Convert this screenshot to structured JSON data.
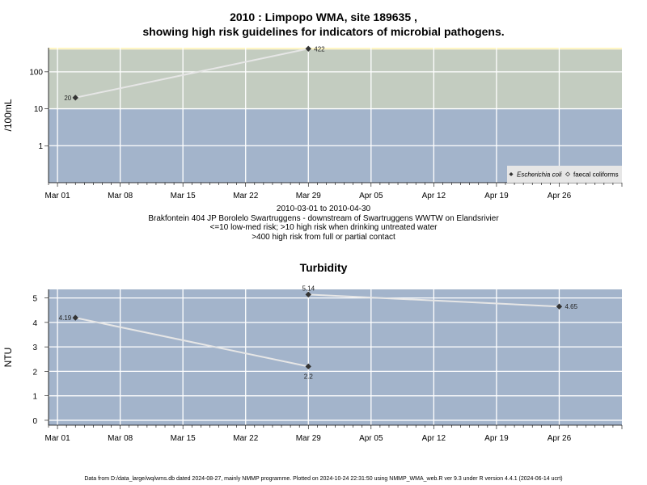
{
  "chart1": {
    "title_line1": "2010 : Limpopo WMA, site 189635 ,",
    "title_line2": "showing high risk guidelines for indicators of microbial pathogens.",
    "ylabel": "/100mL",
    "x_ticks": [
      "Mar 01",
      "Mar 08",
      "Mar 15",
      "Mar 22",
      "Mar 29",
      "Apr 05",
      "Apr 12",
      "Apr 19",
      "Apr 26"
    ],
    "y_ticks": [
      "1",
      "10",
      "100"
    ],
    "caption": [
      "2010-03-01 to 2010-04-30",
      "Brakfontein 404 JP Borolelo Swartruggens - downstream of Swartruggens WWTW on Elandsrivier",
      "<=10 low-med risk; >10 high risk when drinking untreated water",
      ">400 high risk from full or partial contact"
    ],
    "legend": [
      "Escherichia coli",
      "faecal coliforms"
    ],
    "colors": {
      "low_band": "#a3b4cb",
      "mid_band": "#c3ccc0",
      "high_band": "#fff6c4",
      "line": "#e6e6e6",
      "grid": "#ffffff"
    }
  },
  "chart2": {
    "title": "Turbidity",
    "ylabel": "NTU",
    "x_ticks": [
      "Mar 01",
      "Mar 08",
      "Mar 15",
      "Mar 22",
      "Mar 29",
      "Apr 05",
      "Apr 12",
      "Apr 19",
      "Apr 26"
    ],
    "y_ticks": [
      "0",
      "1",
      "2",
      "3",
      "4",
      "5"
    ],
    "colors": {
      "background": "#a3b4cb",
      "line": "#e6e6e6",
      "grid": "#ffffff"
    }
  },
  "footer": "Data from D:/data_large/wq/wms.db dated 2024-08-27, mainly NMMP programme. Plotted on 2024-10-24 22:31:50 using NMMP_WMA_web.R ver 9.3 under R version 4.4.1 (2024-06-14 ucrt)",
  "chart_data": [
    {
      "type": "line",
      "title": "2010 : Limpopo WMA, site 189635 , showing high risk guidelines for indicators of microbial pathogens.",
      "xlabel": "",
      "ylabel": "/100mL",
      "log_y": true,
      "xlim": [
        "2010-02-28",
        "2010-05-03"
      ],
      "ylim": [
        0.1,
        450
      ],
      "thresholds": [
        10,
        400
      ],
      "series": [
        {
          "name": "Escherichia coli",
          "points": [
            {
              "x": "2010-03-03",
              "y": 20,
              "label": "20"
            },
            {
              "x": "2010-03-29",
              "y": 422,
              "label": "422"
            }
          ]
        },
        {
          "name": "faecal coliforms",
          "points": []
        }
      ],
      "legend_position": "bottom-right",
      "grid": true
    },
    {
      "type": "line",
      "title": "Turbidity",
      "xlabel": "",
      "ylabel": "NTU",
      "log_y": false,
      "xlim": [
        "2010-02-28",
        "2010-05-03"
      ],
      "ylim": [
        -0.2,
        5.35
      ],
      "series": [
        {
          "name": "",
          "segments": [
            [
              {
                "x": "2010-03-03",
                "y": 4.19,
                "label": "4.19"
              },
              {
                "x": "2010-03-29",
                "y": 2.2,
                "label": "2.2"
              }
            ],
            [
              {
                "x": "2010-03-29",
                "y": 5.14,
                "label": "5.14"
              },
              {
                "x": "2010-04-26",
                "y": 4.65,
                "label": "4.65"
              }
            ]
          ]
        }
      ],
      "grid": true
    }
  ]
}
